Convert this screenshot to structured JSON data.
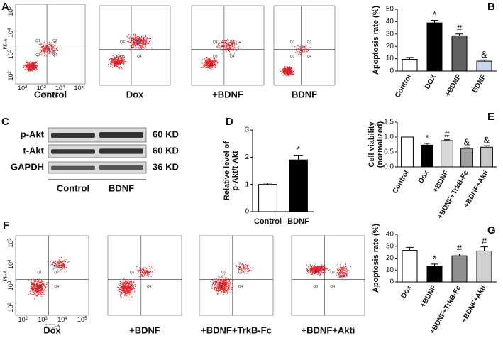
{
  "flow_a": {
    "letter": "A",
    "y_label": "PE-A",
    "x_label": "FITC-A",
    "base": "10",
    "ticks": [
      "2",
      "3",
      "4",
      "5"
    ],
    "quadrants": [
      "Q1",
      "Q2",
      "Q3",
      "Q4"
    ],
    "samples": [
      "Control",
      "Dox",
      "+BDNF",
      "BDNF"
    ]
  },
  "flow_f": {
    "letter": "F",
    "y_label": "PE-A",
    "x_label": "FITC-A",
    "base": "10",
    "ticks": [
      "2",
      "3",
      "4",
      "5"
    ],
    "quadrants": [
      "Q1",
      "Q2",
      "Q3",
      "Q4"
    ],
    "samples": [
      "Dox",
      "+BDNF",
      "+BDNF+TrkB-Fc",
      "+BDNF+Akti"
    ]
  },
  "blot": {
    "letter": "C",
    "rows": [
      "p-Akt",
      "t-Akt",
      "GAPDH"
    ],
    "sizes": [
      "60 KD",
      "60 KD",
      "36 KD"
    ],
    "lanes": [
      "Control",
      "BDNF"
    ]
  },
  "chart_data": [
    {
      "type": "bar",
      "letter": "B",
      "y_label": [
        "Apoptosis rate (%)"
      ],
      "categories": [
        "Control",
        "DOX",
        "+BDNF",
        "BDNF"
      ],
      "values": [
        9.5,
        39,
        28.5,
        8
      ],
      "errors": [
        1.5,
        2,
        1.5,
        1
      ],
      "colors": [
        "#ffffff",
        "#000000",
        "#606060",
        "#c8d4f0"
      ],
      "annotations": [
        null,
        "*",
        "#",
        "&"
      ],
      "ylim": [
        0,
        50
      ],
      "yticks": [
        0,
        10,
        20,
        30,
        40,
        50
      ],
      "rotate_labels": true
    },
    {
      "type": "bar",
      "letter": "D",
      "y_label": [
        "Relative level of",
        "p-Akt/t-Akt"
      ],
      "categories": [
        "Control",
        "BDNF"
      ],
      "values": [
        1.0,
        1.9
      ],
      "errors": [
        0.05,
        0.17
      ],
      "colors": [
        "#ffffff",
        "#000000"
      ],
      "annotations": [
        null,
        "*"
      ],
      "ylim": [
        0,
        3
      ],
      "yticks": [
        0,
        1,
        2,
        3
      ],
      "rotate_labels": false
    },
    {
      "type": "bar",
      "letter": "E",
      "y_label": [
        "Cell viability",
        "(normalized)"
      ],
      "categories": [
        "Control",
        "Dox",
        "+BDNF",
        "+BDNF+TrkB-Fc",
        "+BDNF+Akti"
      ],
      "values": [
        1.0,
        0.73,
        0.88,
        0.62,
        0.66
      ],
      "errors": [
        0.0,
        0.06,
        0.03,
        0.02,
        0.05
      ],
      "colors": [
        "#ffffff",
        "#000000",
        "#d8d8d8",
        "#a0a0a0",
        "#c8c8c8"
      ],
      "annotations": [
        null,
        "*",
        "#",
        "&",
        "&"
      ],
      "ylim": [
        0,
        1.5
      ],
      "yticks": [
        {
          "value": 0,
          "label": "0.0"
        },
        {
          "value": 0.5,
          "label": "0.5"
        },
        {
          "value": 1,
          "label": "1.0"
        },
        {
          "value": 1.5,
          "label": "1.5"
        }
      ],
      "rotate_labels": true
    },
    {
      "type": "bar",
      "letter": "G",
      "y_label": [
        "Apoptosis rate (%)"
      ],
      "categories": [
        "Dox",
        "+BDNF",
        "+BDNF+TrkB-Fc",
        "+BDNF+Akti"
      ],
      "values": [
        26.5,
        13,
        22,
        26
      ],
      "errors": [
        2.5,
        2,
        1.5,
        3.5
      ],
      "colors": [
        "#ffffff",
        "#000000",
        "#909090",
        "#d0d0d0"
      ],
      "annotations": [
        null,
        "*",
        "#",
        "#"
      ],
      "ylim": [
        0,
        40
      ],
      "yticks": [
        0,
        10,
        20,
        30,
        40
      ],
      "rotate_labels": true
    }
  ]
}
